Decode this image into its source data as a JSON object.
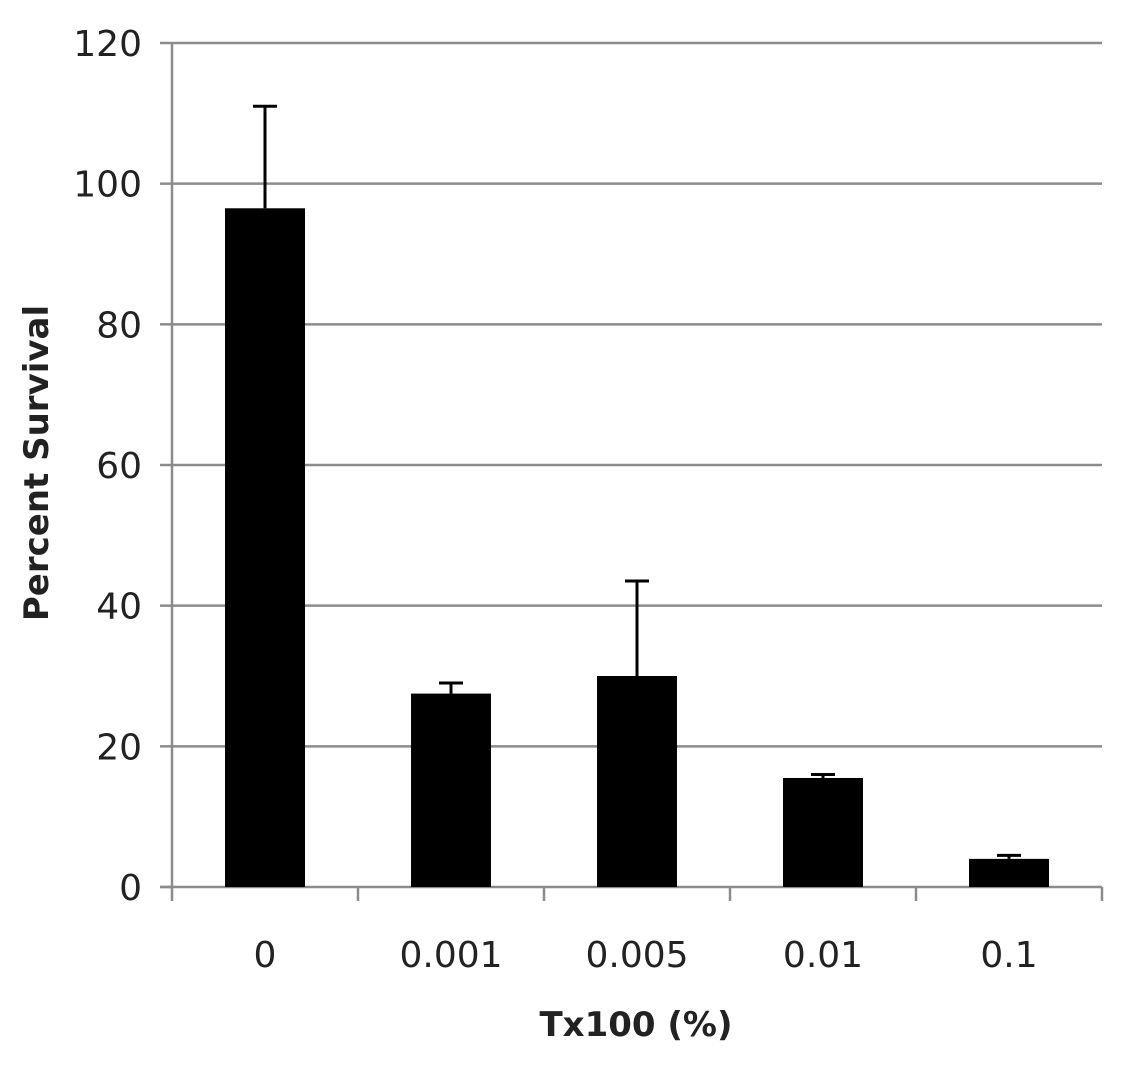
{
  "chart_data": {
    "type": "bar",
    "title": "",
    "xlabel": "Tx100 (%)",
    "ylabel": "Percent Survival",
    "categories": [
      "0",
      "0.001",
      "0.005",
      "0.01",
      "0.1"
    ],
    "series": [
      {
        "values": [
          96.5,
          27.5,
          30,
          15.5,
          4
        ],
        "error_upper": [
          14.5,
          1.5,
          13.5,
          0.5,
          0.5
        ]
      }
    ],
    "ylim": [
      0,
      120
    ],
    "yticks": [
      0,
      20,
      40,
      60,
      80,
      100,
      120
    ],
    "ytick_labels": [
      "0",
      "20",
      "40",
      "60",
      "80",
      "100",
      "120"
    ],
    "grid": true,
    "legend": "none",
    "colors": {
      "bar": "#000000",
      "grid": "#8c8c8c",
      "axis": "#8c8c8c",
      "error_bar": "#000000"
    }
  }
}
